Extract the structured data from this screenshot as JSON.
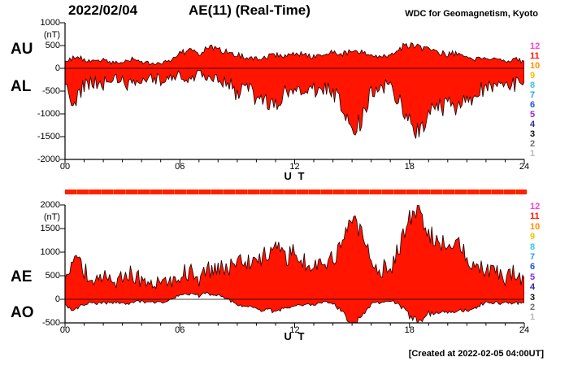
{
  "header": {
    "date": "2022/02/04",
    "title": "AE(11) (Real-Time)",
    "source": "WDC for Geomagnetism, Kyoto"
  },
  "footer": {
    "created": "[Created at 2022-02-05 04:00UT]"
  },
  "colors": {
    "fill": "#ff1500",
    "outline": "#1c0000",
    "availability_bar": "#ff2000",
    "axis": "#000000"
  },
  "stations": [
    {
      "label": "12",
      "color": "#ff3fd8"
    },
    {
      "label": "11",
      "color": "#ff1500"
    },
    {
      "label": "10",
      "color": "#ff9000"
    },
    {
      "label": "9",
      "color": "#eec400"
    },
    {
      "label": "8",
      "color": "#35c8e8"
    },
    {
      "label": "7",
      "color": "#2e9bff"
    },
    {
      "label": "6",
      "color": "#2353e0"
    },
    {
      "label": "5",
      "color": "#8a2be2"
    },
    {
      "label": "4",
      "color": "#2a2a9a"
    },
    {
      "label": "3",
      "color": "#101010"
    },
    {
      "label": "2",
      "color": "#6e6e6e"
    },
    {
      "label": "1",
      "color": "#b8b8b8"
    }
  ],
  "chart_data": [
    {
      "type": "area",
      "panel": "AU/AL",
      "unit": "(nT)",
      "xlabel": "U T",
      "ylim": [
        -2000,
        1000
      ],
      "yticks": [
        1000,
        500,
        0,
        -500,
        -1000,
        -1500,
        -2000
      ],
      "xticks": [
        {
          "h": 0,
          "label": "00"
        },
        {
          "h": 6,
          "label": "06"
        },
        {
          "h": 12,
          "label": "12"
        },
        {
          "h": 18,
          "label": "18"
        },
        {
          "h": 24,
          "label": "24"
        }
      ],
      "x_range_hours": [
        0,
        24
      ],
      "x_step_hours": 0.5,
      "grid": false,
      "series": [
        {
          "name": "AU",
          "noise_amplitude": 90,
          "clamp_min": 5,
          "values": [
            150,
            250,
            200,
            150,
            180,
            120,
            150,
            200,
            150,
            100,
            120,
            150,
            350,
            400,
            300,
            450,
            400,
            350,
            300,
            250,
            200,
            250,
            300,
            250,
            350,
            300,
            250,
            300,
            350,
            300,
            400,
            350,
            300,
            250,
            300,
            450,
            500,
            450,
            400,
            350,
            300,
            350,
            250,
            200,
            250,
            200,
            150,
            200,
            150
          ]
        },
        {
          "name": "AL",
          "noise_amplitude": 220,
          "clamp_max": -5,
          "values": [
            -400,
            -700,
            -400,
            -300,
            -350,
            -250,
            -300,
            -350,
            -250,
            -200,
            -250,
            -200,
            -150,
            -200,
            -150,
            -200,
            -250,
            -300,
            -600,
            -500,
            -600,
            -700,
            -800,
            -600,
            -650,
            -500,
            -450,
            -400,
            -500,
            -900,
            -1500,
            -1100,
            -500,
            -400,
            -350,
            -700,
            -1200,
            -1400,
            -1000,
            -900,
            -800,
            -900,
            -700,
            -500,
            -400,
            -350,
            -300,
            -350,
            -300
          ]
        }
      ]
    },
    {
      "type": "area",
      "panel": "AE/AO",
      "unit": "(nT)",
      "xlabel": "U T",
      "ylim": [
        -500,
        2000
      ],
      "yticks": [
        2000,
        1500,
        1000,
        500,
        0,
        -500
      ],
      "xticks": [
        {
          "h": 0,
          "label": "00"
        },
        {
          "h": 6,
          "label": "06"
        },
        {
          "h": 12,
          "label": "12"
        },
        {
          "h": 18,
          "label": "18"
        },
        {
          "h": 24,
          "label": "24"
        }
      ],
      "x_range_hours": [
        0,
        24
      ],
      "x_step_hours": 0.5,
      "grid": false,
      "series": [
        {
          "name": "AE",
          "noise_amplitude": 200,
          "clamp_min": 10,
          "values": [
            550,
            950,
            600,
            450,
            530,
            370,
            450,
            550,
            400,
            300,
            370,
            350,
            500,
            600,
            450,
            650,
            650,
            650,
            900,
            750,
            800,
            950,
            1100,
            850,
            1000,
            800,
            700,
            700,
            850,
            1200,
            1650,
            1450,
            800,
            650,
            650,
            1150,
            1700,
            1900,
            1400,
            1250,
            1100,
            1250,
            950,
            700,
            650,
            550,
            450,
            550,
            450
          ]
        },
        {
          "name": "AO",
          "noise_amplitude": 90,
          "values": [
            -125,
            -225,
            -100,
            -75,
            -85,
            -65,
            -75,
            -75,
            -50,
            -50,
            -65,
            -25,
            100,
            100,
            75,
            125,
            75,
            25,
            -150,
            -125,
            -200,
            -225,
            -250,
            -175,
            -150,
            -100,
            -100,
            -50,
            -75,
            -300,
            -550,
            -375,
            -100,
            -75,
            -25,
            -125,
            -350,
            -475,
            -300,
            -275,
            -250,
            -275,
            -225,
            -150,
            -75,
            -75,
            -75,
            -75,
            -75
          ]
        }
      ]
    }
  ]
}
